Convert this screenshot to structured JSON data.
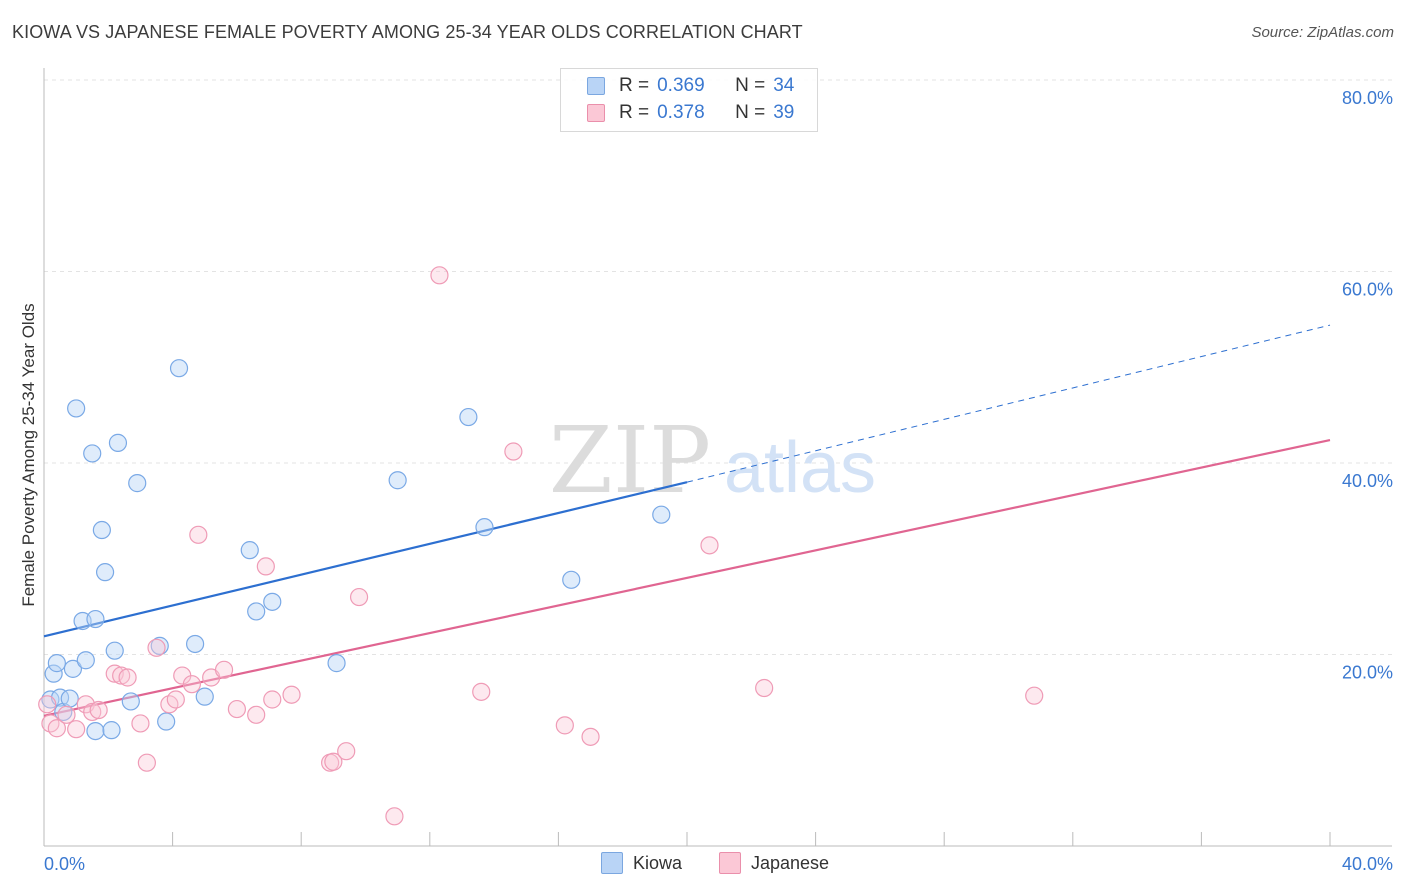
{
  "header": {
    "title": "KIOWA VS JAPANESE FEMALE POVERTY AMONG 25-34 YEAR OLDS CORRELATION CHART",
    "source": "Source: ZipAtlas.com"
  },
  "watermark": {
    "zip": "ZIP",
    "atlas": "atlas"
  },
  "legend_stats": [
    {
      "r_label": "R =",
      "r_value": "0.369",
      "n_label": "N =",
      "n_value": "34"
    },
    {
      "r_label": "R =",
      "r_value": "0.378",
      "n_label": "N =",
      "n_value": "39"
    }
  ],
  "chart_data": {
    "type": "scatter",
    "title": "KIOWA VS JAPANESE FEMALE POVERTY AMONG 25-34 YEAR OLDS CORRELATION CHART",
    "xlabel": "",
    "ylabel": "Female Poverty Among 25-34 Year Olds",
    "xlim": [
      0,
      40
    ],
    "ylim": [
      0,
      80
    ],
    "x_tick_labels": [
      "0.0%",
      "40.0%"
    ],
    "y_ticks": [
      20,
      40,
      60,
      80
    ],
    "y_tick_labels": [
      "20.0%",
      "40.0%",
      "60.0%",
      "80.0%"
    ],
    "grid": true,
    "legend_position": "bottom",
    "colors": {
      "kiowa": "#7aa9e6",
      "kiowa_line": "#2d6fd0",
      "japanese": "#ef9bb6",
      "japanese_line": "#e06591",
      "tick_label": "#3a78d0"
    },
    "series": [
      {
        "name": "Kiowa",
        "points": [
          [
            0.2,
            15.3
          ],
          [
            0.3,
            18.0
          ],
          [
            0.4,
            19.1
          ],
          [
            0.5,
            15.5
          ],
          [
            0.6,
            14.0
          ],
          [
            0.8,
            15.4
          ],
          [
            0.9,
            18.5
          ],
          [
            1.0,
            45.7
          ],
          [
            1.2,
            23.5
          ],
          [
            1.3,
            19.4
          ],
          [
            1.5,
            41.0
          ],
          [
            1.6,
            12.0
          ],
          [
            1.6,
            23.7
          ],
          [
            1.8,
            33.0
          ],
          [
            1.9,
            28.6
          ],
          [
            2.1,
            12.1
          ],
          [
            2.2,
            20.4
          ],
          [
            2.3,
            42.1
          ],
          [
            2.7,
            15.1
          ],
          [
            2.9,
            37.9
          ],
          [
            3.6,
            20.9
          ],
          [
            3.8,
            13.0
          ],
          [
            4.2,
            49.9
          ],
          [
            4.7,
            21.1
          ],
          [
            5.0,
            15.6
          ],
          [
            6.4,
            30.9
          ],
          [
            6.6,
            24.5
          ],
          [
            7.1,
            25.5
          ],
          [
            9.1,
            19.1
          ],
          [
            11.0,
            38.2
          ],
          [
            13.2,
            44.8
          ],
          [
            13.7,
            33.3
          ],
          [
            16.4,
            27.8
          ],
          [
            19.2,
            34.6
          ]
        ],
        "trend": {
          "x0": 0,
          "y0": 21.9,
          "x1": 20,
          "y1": 38.0,
          "dashed_to_x": 40,
          "dashed_to_y": 54.4
        }
      },
      {
        "name": "Japanese",
        "points": [
          [
            0.1,
            14.8
          ],
          [
            0.2,
            12.8
          ],
          [
            0.4,
            12.3
          ],
          [
            0.7,
            13.7
          ],
          [
            1.0,
            12.2
          ],
          [
            1.3,
            14.8
          ],
          [
            1.5,
            14.0
          ],
          [
            1.7,
            14.2
          ],
          [
            2.2,
            18.0
          ],
          [
            2.4,
            17.8
          ],
          [
            2.6,
            17.6
          ],
          [
            3.0,
            12.8
          ],
          [
            3.2,
            8.7
          ],
          [
            3.5,
            20.7
          ],
          [
            3.9,
            14.8
          ],
          [
            4.1,
            15.3
          ],
          [
            4.3,
            17.8
          ],
          [
            4.6,
            16.9
          ],
          [
            4.8,
            32.5
          ],
          [
            5.2,
            17.6
          ],
          [
            5.6,
            18.4
          ],
          [
            6.0,
            14.3
          ],
          [
            6.6,
            13.7
          ],
          [
            6.9,
            29.2
          ],
          [
            7.1,
            15.3
          ],
          [
            7.7,
            15.8
          ],
          [
            8.9,
            8.7
          ],
          [
            9.0,
            8.8
          ],
          [
            9.4,
            9.9
          ],
          [
            9.8,
            26.0
          ],
          [
            10.9,
            3.1
          ],
          [
            12.3,
            59.6
          ],
          [
            13.6,
            16.1
          ],
          [
            14.6,
            41.2
          ],
          [
            16.2,
            12.6
          ],
          [
            17.0,
            11.4
          ],
          [
            20.7,
            31.4
          ],
          [
            22.4,
            16.5
          ],
          [
            30.8,
            15.7
          ]
        ],
        "trend": {
          "x0": 0,
          "y0": 13.6,
          "x1": 40,
          "y1": 42.4
        }
      }
    ]
  }
}
